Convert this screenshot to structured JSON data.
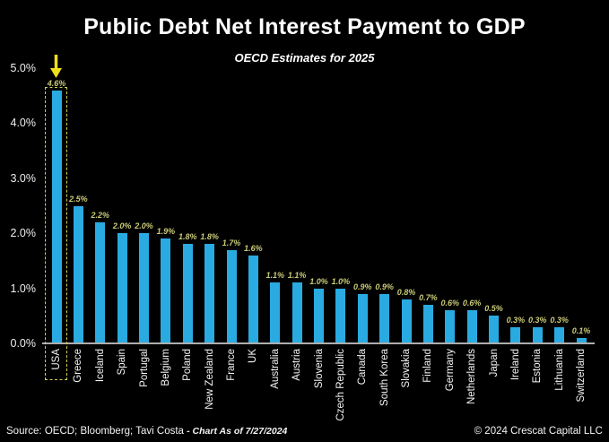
{
  "footer": {
    "source": "Source: OECD; Bloomberg; Tavi Costa",
    "as_of": "- Chart As of 7/27/2024",
    "copyright": "© 2024 Crescat Capital LLC"
  },
  "colors": {
    "background": "#000000",
    "bar": "#29ABE2",
    "value_label": "#CBCB78",
    "axis_text": "#F0F0F0",
    "category_text": "#F5F5F5",
    "highlight_yellow": "#CFCF55",
    "arrow_yellow": "#EFE01B",
    "axis_line": "#AEAEAE"
  },
  "chart_data": {
    "type": "bar",
    "title": "Public Debt Net Interest Payment to GDP",
    "subtitle": "OECD Estimates for 2025",
    "xlabel": "",
    "ylabel": "",
    "ylim": [
      0,
      5
    ],
    "yticks": [
      "0.0%",
      "1.0%",
      "2.0%",
      "3.0%",
      "4.0%",
      "5.0%"
    ],
    "grid": false,
    "legend": null,
    "categories": [
      "USA",
      "Greece",
      "Iceland",
      "Spain",
      "Portugal",
      "Belgium",
      "Poland",
      "New Zealand",
      "France",
      "UK",
      "Australia",
      "Austria",
      "Slovenia",
      "Czech Republic",
      "Canada",
      "South Korea",
      "Slovakia",
      "Finland",
      "Germany",
      "Netherlands",
      "Japan",
      "Ireland",
      "Estonia",
      "Lithuania",
      "Switzerland"
    ],
    "values": [
      4.6,
      2.5,
      2.2,
      2.0,
      2.0,
      1.9,
      1.8,
      1.8,
      1.7,
      1.6,
      1.1,
      1.1,
      1.0,
      1.0,
      0.9,
      0.9,
      0.8,
      0.7,
      0.6,
      0.6,
      0.5,
      0.3,
      0.3,
      0.3,
      0.1
    ],
    "value_labels": [
      "4.6%",
      "2.5%",
      "2.2%",
      "2.0%",
      "2.0%",
      "1.9%",
      "1.8%",
      "1.8%",
      "1.7%",
      "1.6%",
      "1.1%",
      "1.1%",
      "1.0%",
      "1.0%",
      "0.9%",
      "0.9%",
      "0.8%",
      "0.7%",
      "0.6%",
      "0.6%",
      "0.5%",
      "0.3%",
      "0.3%",
      "0.3%",
      "0.1%"
    ],
    "annotations": {
      "highlighted_category": "USA",
      "highlighted_value": "4.6%",
      "arrow": "down-arrow"
    }
  }
}
